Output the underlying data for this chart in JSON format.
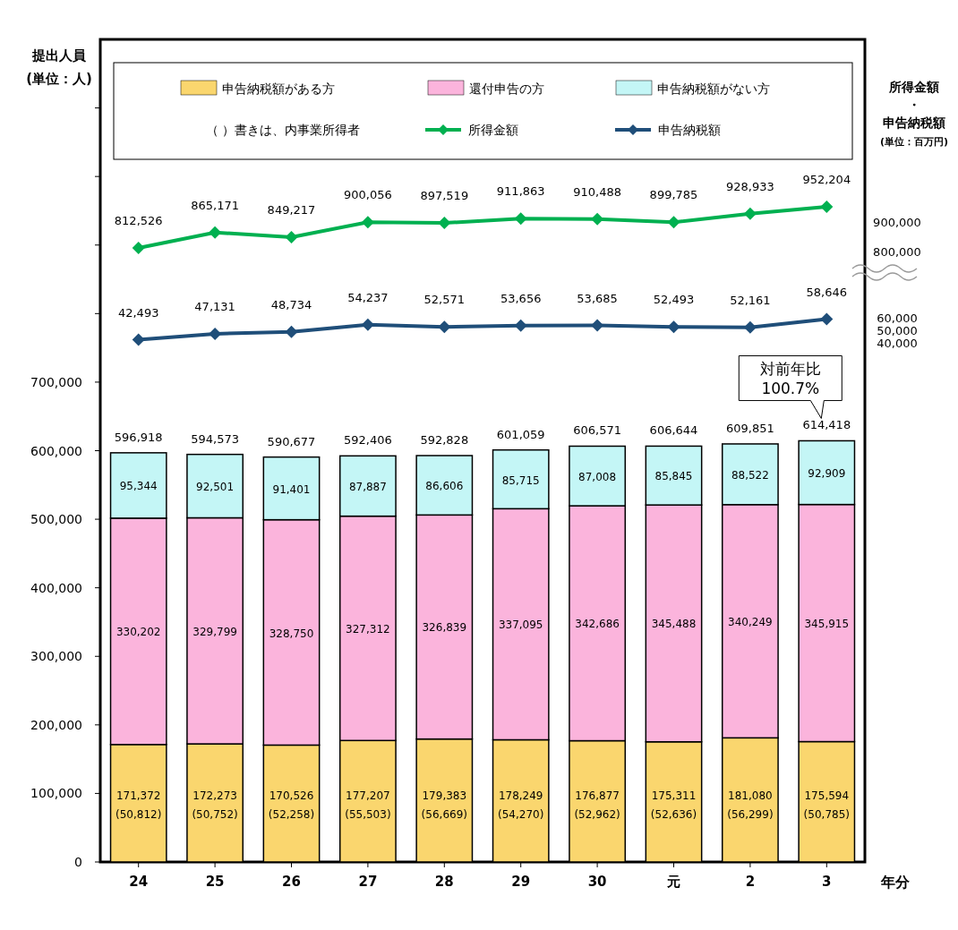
{
  "chart_data": {
    "type": "bar",
    "stacked": true,
    "categories": [
      "24",
      "25",
      "26",
      "27",
      "28",
      "29",
      "30",
      "元",
      "2",
      "3"
    ],
    "xlabel": "年分",
    "ylabel": "提出人員\n(単位：人)",
    "y2label": "所得金額・申告納税額(単位：百万円)",
    "ylim": [
      0,
      1200000
    ],
    "yticks": [
      0,
      {
        "value": 100000,
        "label": "100,000"
      },
      {
        "value": 200000,
        "label": "200,000"
      },
      {
        "value": 300000,
        "label": "300,000"
      },
      {
        "value": 400000,
        "label": "400,000"
      },
      {
        "value": 500000,
        "label": "500,000"
      },
      {
        "value": 600000,
        "label": "600,000"
      },
      {
        "value": 700000,
        "label": "700,000"
      },
      {
        "value": 800000,
        "label": null
      },
      {
        "value": 900000,
        "label": null
      },
      {
        "value": 1000000,
        "label": null
      },
      {
        "value": 1100000,
        "label": null
      }
    ],
    "y2lim": [
      -1270000,
      1520000
    ],
    "y2ticks": [
      {
        "value": 900000,
        "label": "900,000"
      },
      {
        "value": 800000,
        "label": "800,000"
      }
    ],
    "y3lim": [
      -367000,
      278000
    ],
    "y3ticks": [
      {
        "value": 60000,
        "label": "60,000"
      },
      {
        "value": 50000,
        "label": "50,000"
      },
      {
        "value": 40000,
        "label": "40,000"
      }
    ],
    "legend": "top",
    "grid": false,
    "series": [
      {
        "name": "申告納税額がある方",
        "color": "#fad66e",
        "values": [
          171372,
          172273,
          170526,
          177207,
          179383,
          178249,
          176877,
          175311,
          181080,
          175594
        ],
        "value_labels": [
          "171,372\n(50,812)",
          "172,273\n(50,752)",
          "170,526\n(52,258)",
          "177,207\n(55,503)",
          "179,383\n(56,669)",
          "178,249\n(54,270)",
          "176,877\n(52,962)",
          "175,311\n(52,636)",
          "181,080\n(56,299)",
          "175,594\n(50,785)"
        ]
      },
      {
        "name": "還付申告の方",
        "color": "#fbb4dc",
        "values": [
          330202,
          329799,
          328750,
          327312,
          326839,
          337095,
          342686,
          345488,
          340249,
          345915
        ],
        "value_labels": [
          "330,202",
          "329,799",
          "328,750",
          "327,312",
          "326,839",
          "337,095",
          "342,686",
          "345,488",
          "340,249",
          "345,915"
        ]
      },
      {
        "name": "申告納税額がない方",
        "color": "#c4f6f6",
        "values": [
          95344,
          92501,
          91401,
          87887,
          86606,
          85715,
          87008,
          85845,
          88522,
          92909
        ],
        "value_labels": [
          "95,344",
          "92,501",
          "91,401",
          "87,887",
          "86,606",
          "85,715",
          "87,008",
          "85,845",
          "88,522",
          "92,909"
        ]
      },
      {
        "name": "所得金額",
        "type": "line",
        "axis": "y2",
        "color": "#00b050",
        "marker": "diamond",
        "line_style": "solid",
        "values": [
          812526,
          865171,
          849217,
          900056,
          897519,
          911863,
          910488,
          899785,
          928933,
          952204
        ],
        "value_labels": [
          "812,526",
          "865,171",
          "849,217",
          "900,056",
          "897,519",
          "911,863",
          "910,488",
          "899,785",
          "928,933",
          "952,204"
        ]
      },
      {
        "name": "申告納税額",
        "type": "line",
        "axis": "y3",
        "color": "#1f4e79",
        "marker": "diamond",
        "line_style": "solid",
        "values": [
          42493,
          47131,
          48734,
          54237,
          52571,
          53656,
          53685,
          52493,
          52161,
          58646
        ],
        "value_labels": [
          "42,493",
          "47,131",
          "48,734",
          "54,237",
          "52,571",
          "53,656",
          "53,685",
          "52,493",
          "52,161",
          "58,646"
        ]
      }
    ],
    "totals": [
      "596,918",
      "594,573",
      "590,677",
      "592,406",
      "592,828",
      "601,059",
      "606,571",
      "606,644",
      "609,851",
      "614,418"
    ],
    "annotations": [
      "（ ）書きは、内事業所得者",
      {
        "text": "対前年比\n100.7%",
        "x": "3",
        "y": 614418
      }
    ]
  }
}
